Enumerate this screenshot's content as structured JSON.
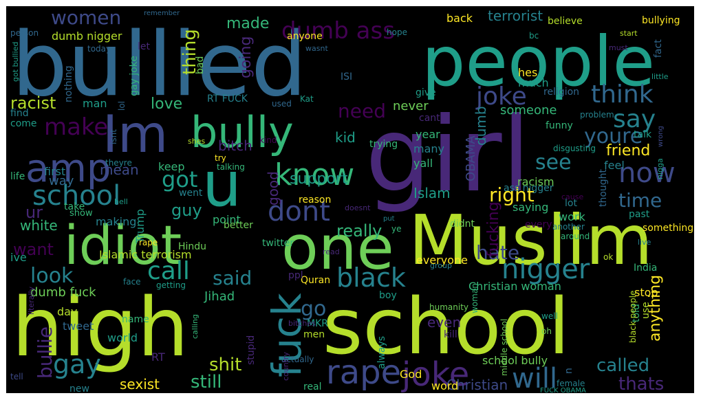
{
  "palette": {
    "background": "#000000",
    "p1": "#440154",
    "p2": "#482878",
    "p3": "#3e4a89",
    "p4": "#31688e",
    "p5": "#26828e",
    "p6": "#1f9e89",
    "p7": "#35b779",
    "p8": "#6ece58",
    "p9": "#b5de2b",
    "p10": "#fde725"
  },
  "words": [
    {
      "text": "bullied",
      "color": "p4"
    },
    {
      "text": "people",
      "color": "p6"
    },
    {
      "text": "girl",
      "color": "p2"
    },
    {
      "text": "high",
      "color": "p9"
    },
    {
      "text": "school",
      "color": "p9"
    },
    {
      "text": "Muslim",
      "color": "p9"
    },
    {
      "text": "one",
      "color": "p8"
    },
    {
      "text": "idiot",
      "color": "p8"
    },
    {
      "text": "Im",
      "color": "p3"
    },
    {
      "text": "u",
      "color": "p6"
    },
    {
      "text": "bully",
      "color": "p7"
    },
    {
      "text": "amp",
      "color": "p3"
    },
    {
      "text": "know",
      "color": "p7"
    },
    {
      "text": "school",
      "color": "p5"
    },
    {
      "text": "fuck",
      "color": "p5"
    },
    {
      "text": "rape",
      "color": "p3"
    },
    {
      "text": "joke",
      "color": "p2"
    },
    {
      "text": "will",
      "color": "p4"
    },
    {
      "text": "say",
      "color": "p5"
    },
    {
      "text": "think",
      "color": "p4"
    },
    {
      "text": "now",
      "color": "p3"
    },
    {
      "text": "dont",
      "color": "p3"
    },
    {
      "text": "black",
      "color": "p5"
    },
    {
      "text": "nigger",
      "color": "p5"
    },
    {
      "text": "right",
      "color": "p10"
    },
    {
      "text": "joke",
      "color": "p3"
    },
    {
      "text": "gay",
      "color": "p5"
    },
    {
      "text": "call",
      "color": "p6"
    },
    {
      "text": "dumb ass",
      "color": "p1"
    },
    {
      "text": "women",
      "color": "p3"
    },
    {
      "text": "terrorist",
      "color": "p5"
    },
    {
      "text": "made",
      "color": "p7"
    },
    {
      "text": "thing",
      "color": "p9"
    },
    {
      "text": "going",
      "color": "p2"
    },
    {
      "text": "make",
      "color": "p1"
    },
    {
      "text": "need",
      "color": "p1"
    },
    {
      "text": "love",
      "color": "p7"
    },
    {
      "text": "racist",
      "color": "p9"
    },
    {
      "text": "got",
      "color": "p6"
    },
    {
      "text": "youre",
      "color": "p4"
    },
    {
      "text": "see",
      "color": "p5"
    },
    {
      "text": "friend",
      "color": "p10"
    },
    {
      "text": "time",
      "color": "p4"
    },
    {
      "text": "look",
      "color": "p5"
    },
    {
      "text": "said",
      "color": "p5"
    },
    {
      "text": "go",
      "color": "p4"
    },
    {
      "text": "hate",
      "color": "p3"
    },
    {
      "text": "white",
      "color": "p7"
    },
    {
      "text": "want",
      "color": "p1"
    },
    {
      "text": "ur",
      "color": "p2"
    },
    {
      "text": "mean",
      "color": "p3"
    },
    {
      "text": "guy",
      "color": "p6"
    },
    {
      "text": "bitch",
      "color": "p2"
    },
    {
      "text": "kid",
      "color": "p6"
    },
    {
      "text": "support",
      "color": "p6"
    },
    {
      "text": "really",
      "color": "p7"
    },
    {
      "text": "Islam",
      "color": "p6"
    },
    {
      "text": "fucking",
      "color": "p1"
    },
    {
      "text": "called",
      "color": "p5"
    },
    {
      "text": "thats",
      "color": "p2"
    },
    {
      "text": "shit",
      "color": "p9"
    },
    {
      "text": "still",
      "color": "p7"
    },
    {
      "text": "sexist",
      "color": "p10"
    },
    {
      "text": "bullie",
      "color": "p2"
    },
    {
      "text": "Christian",
      "color": "p3"
    },
    {
      "text": "anything",
      "color": "p10"
    },
    {
      "text": "even",
      "color": "p2"
    },
    {
      "text": "someone",
      "color": "p7"
    },
    {
      "text": "never",
      "color": "p8"
    },
    {
      "text": "dumb",
      "color": "p5"
    },
    {
      "text": "OBAMA",
      "color": "p3"
    },
    {
      "text": "good",
      "color": "p2"
    },
    {
      "text": "way",
      "color": "p4"
    },
    {
      "text": "first",
      "color": "p5"
    },
    {
      "text": "much",
      "color": "p6"
    },
    {
      "text": "hes",
      "color": "p10"
    },
    {
      "text": "back",
      "color": "p10"
    },
    {
      "text": "believe",
      "color": "p9"
    },
    {
      "text": "bullying",
      "color": "p10"
    },
    {
      "text": "religion",
      "color": "p4"
    },
    {
      "text": "give",
      "color": "p6"
    },
    {
      "text": "funny",
      "color": "p7"
    },
    {
      "text": "problem",
      "color": "p5"
    },
    {
      "text": "talk",
      "color": "p6"
    },
    {
      "text": "feel",
      "color": "p5"
    },
    {
      "text": "year",
      "color": "p7"
    },
    {
      "text": "many",
      "color": "p5"
    },
    {
      "text": "yall",
      "color": "p7"
    },
    {
      "text": "trying",
      "color": "p7"
    },
    {
      "text": "racism",
      "color": "p8"
    },
    {
      "text": "saying",
      "color": "p7"
    },
    {
      "text": "work",
      "color": "p7"
    },
    {
      "text": "lot",
      "color": "p5"
    },
    {
      "text": "every",
      "color": "p1"
    },
    {
      "text": "past",
      "color": "p6"
    },
    {
      "text": "something",
      "color": "p10"
    },
    {
      "text": "thought",
      "color": "p4"
    },
    {
      "text": "ass nigger",
      "color": "p5"
    },
    {
      "text": "disgusting",
      "color": "p6"
    },
    {
      "text": "didnt",
      "color": "p8"
    },
    {
      "text": "cause",
      "color": "p1"
    },
    {
      "text": "another",
      "color": "p5"
    },
    {
      "text": "around",
      "color": "p7"
    },
    {
      "text": "live",
      "color": "p5"
    },
    {
      "text": "ok",
      "color": "p9"
    },
    {
      "text": "India",
      "color": "p7"
    },
    {
      "text": "stop",
      "color": "p10"
    },
    {
      "text": "use",
      "color": "p9"
    },
    {
      "text": "told",
      "color": "p7"
    },
    {
      "text": "black people",
      "color": "p9"
    },
    {
      "text": "Christian woman",
      "color": "p7"
    },
    {
      "text": "everyone",
      "color": "p10"
    },
    {
      "text": "Quran",
      "color": "p10"
    },
    {
      "text": "boy",
      "color": "p6"
    },
    {
      "text": "humanity",
      "color": "p8"
    },
    {
      "text": "group",
      "color": "p5"
    },
    {
      "text": "kill",
      "color": "p2"
    },
    {
      "text": "woman",
      "color": "p7"
    },
    {
      "text": "well",
      "color": "p6"
    },
    {
      "text": "oh",
      "color": "p8"
    },
    {
      "text": "n",
      "color": "p4"
    },
    {
      "text": "middle school",
      "color": "p8"
    },
    {
      "text": "school bully",
      "color": "p8"
    },
    {
      "text": "God",
      "color": "p10"
    },
    {
      "text": "word",
      "color": "p10"
    },
    {
      "text": "female",
      "color": "p5"
    },
    {
      "text": "FUCK OBAMA",
      "color": "p6"
    },
    {
      "text": "fact",
      "color": "p4"
    },
    {
      "text": "men",
      "color": "p9"
    },
    {
      "text": "MKR",
      "color": "p6"
    },
    {
      "text": "real",
      "color": "p7"
    },
    {
      "text": "always",
      "color": "p6"
    },
    {
      "text": "actually",
      "color": "p4"
    },
    {
      "text": "stupid",
      "color": "p2"
    },
    {
      "text": "country",
      "color": "p2"
    },
    {
      "text": "bitches",
      "color": "p2"
    },
    {
      "text": "ive",
      "color": "p6"
    },
    {
      "text": "dumb fuck",
      "color": "p8"
    },
    {
      "text": "Islamic terrorism",
      "color": "p9"
    },
    {
      "text": "rape",
      "color": "p10"
    },
    {
      "text": "Jihad",
      "color": "p7"
    },
    {
      "text": "twitter",
      "color": "p7"
    },
    {
      "text": "day",
      "color": "p9"
    },
    {
      "text": "tweet",
      "color": "p4"
    },
    {
      "text": "world",
      "color": "p6"
    },
    {
      "text": "name",
      "color": "p7"
    },
    {
      "text": "calling",
      "color": "p7"
    },
    {
      "text": "getting",
      "color": "p6"
    },
    {
      "text": "literally",
      "color": "p2"
    },
    {
      "text": "face",
      "color": "p5"
    },
    {
      "text": "Trump",
      "color": "p6"
    },
    {
      "text": "Hindu",
      "color": "p8"
    },
    {
      "text": "RT",
      "color": "p2"
    },
    {
      "text": "new",
      "color": "p5"
    },
    {
      "text": "tell",
      "color": "p3"
    },
    {
      "text": "point",
      "color": "p7"
    },
    {
      "text": "show",
      "color": "p7"
    },
    {
      "text": "making",
      "color": "p5"
    },
    {
      "text": "take",
      "color": "p7"
    },
    {
      "text": "went",
      "color": "p5"
    },
    {
      "text": "keep",
      "color": "p7"
    },
    {
      "text": "better",
      "color": "p8"
    },
    {
      "text": "life",
      "color": "p7"
    },
    {
      "text": "theyre",
      "color": "p5"
    },
    {
      "text": "talking",
      "color": "p7"
    },
    {
      "text": "hell",
      "color": "p6"
    },
    {
      "text": "reason",
      "color": "p10"
    },
    {
      "text": "doesnt",
      "color": "p2"
    },
    {
      "text": "ye",
      "color": "p7"
    },
    {
      "text": "put",
      "color": "p5"
    },
    {
      "text": "read",
      "color": "p2"
    },
    {
      "text": "ppl",
      "color": "p2"
    },
    {
      "text": "cant",
      "color": "p2"
    },
    {
      "text": "used",
      "color": "p4"
    },
    {
      "text": "try",
      "color": "p10"
    },
    {
      "text": "kind",
      "color": "p1"
    },
    {
      "text": "shes",
      "color": "p9"
    },
    {
      "text": "isnt",
      "color": "p4"
    },
    {
      "text": "lol",
      "color": "p4"
    },
    {
      "text": "come",
      "color": "p6"
    },
    {
      "text": "find",
      "color": "p5"
    },
    {
      "text": "man",
      "color": "p6"
    },
    {
      "text": "gay joke",
      "color": "p7"
    },
    {
      "text": "let",
      "color": "p2"
    },
    {
      "text": "bad",
      "color": "p8"
    },
    {
      "text": "RT FUCK",
      "color": "p5"
    },
    {
      "text": "Kat",
      "color": "p6"
    },
    {
      "text": "ISI",
      "color": "p4"
    },
    {
      "text": "anyone",
      "color": "p10"
    },
    {
      "text": "dumb nigger",
      "color": "p9"
    },
    {
      "text": "person",
      "color": "p4"
    },
    {
      "text": "remember",
      "color": "p4"
    },
    {
      "text": "today",
      "color": "p4"
    },
    {
      "text": "nothing",
      "color": "p4"
    },
    {
      "text": "got bullied",
      "color": "p6"
    },
    {
      "text": "hope",
      "color": "p5"
    },
    {
      "text": "wasnt",
      "color": "p4"
    },
    {
      "text": "bc",
      "color": "p6"
    },
    {
      "text": "start",
      "color": "p9"
    },
    {
      "text": "must",
      "color": "p2"
    },
    {
      "text": "little",
      "color": "p6"
    },
    {
      "text": "wrong",
      "color": "p3"
    },
    {
      "text": "nigga",
      "color": "p6"
    }
  ]
}
